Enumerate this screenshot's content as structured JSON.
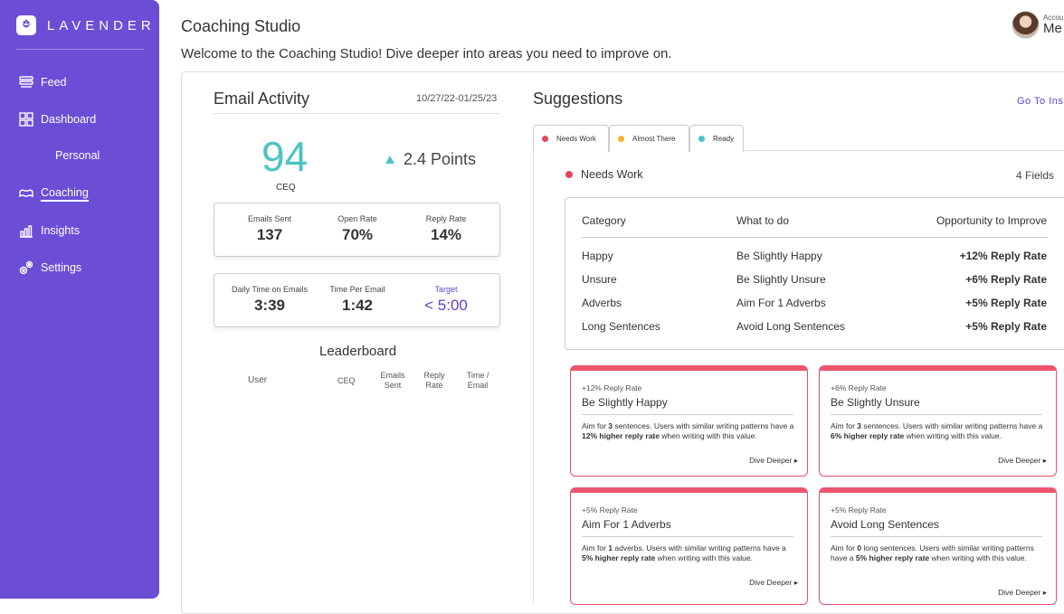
{
  "sidebar": {
    "brand": "LAVENDER",
    "items": [
      {
        "label": "Feed"
      },
      {
        "label": "Dashboard"
      },
      {
        "label": "Personal"
      },
      {
        "label": "Coaching"
      },
      {
        "label": "Insights"
      },
      {
        "label": "Settings"
      }
    ]
  },
  "header": {
    "title": "Coaching Studio",
    "subtitle": "Welcome to the Coaching Studio! Dive deeper into areas you need to improve on.",
    "account_label": "Accou",
    "account_name": "Me"
  },
  "email_activity": {
    "title": "Email Activity",
    "date_range": "10/27/22-01/25/23",
    "ceq": "94",
    "ceq_label": "CEQ",
    "points": "2.4 Points",
    "stats_row1": [
      {
        "label": "Emails Sent",
        "value": "137"
      },
      {
        "label": "Open Rate",
        "value": "70%"
      },
      {
        "label": "Reply Rate",
        "value": "14%"
      }
    ],
    "stats_row2": [
      {
        "label": "Daily Time on Emails",
        "value": "3:39"
      },
      {
        "label": "Time Per Email",
        "value": "1:42"
      },
      {
        "label": "Target",
        "value": "< 5:00"
      }
    ]
  },
  "leaderboard": {
    "title": "Leaderboard",
    "columns": [
      "User",
      "CEQ",
      "Emails\nSent",
      "Reply\nRate",
      "Time /\nEmail"
    ]
  },
  "suggestions": {
    "title": "Suggestions",
    "link": "Go To Insi",
    "tabs": [
      {
        "label": "Needs Work",
        "color": "#e0475f"
      },
      {
        "label": "Almost There",
        "color": "#f2b431"
      },
      {
        "label": "Ready",
        "color": "#4cc3c3"
      }
    ],
    "section_title": "Needs Work",
    "section_count": "4 Fields",
    "table_headers": [
      "Category",
      "What to do",
      "Opportunity to Improve"
    ],
    "table_rows": [
      [
        "Happy",
        "Be Slightly Happy",
        "+12% Reply Rate"
      ],
      [
        "Unsure",
        "Be Slightly Unsure",
        "+6% Reply Rate"
      ],
      [
        "Adverbs",
        "Aim For 1 Adverbs",
        "+5% Reply Rate"
      ],
      [
        "Long Sentences",
        "Avoid Long Sentences",
        "+5% Reply Rate"
      ]
    ],
    "cards": [
      {
        "tag": "+12% Reply Rate",
        "title": "Be Slightly Happy",
        "b1": "Aim for ",
        "b2": "3",
        "b3": " sentences. Users with similar writing patterns have a ",
        "b4": "12% higher reply rate",
        "b5": " when writing with this value.",
        "link": "Dive Deeper ▸"
      },
      {
        "tag": "+6% Reply Rate",
        "title": "Be Slightly Unsure",
        "b1": "Aim for ",
        "b2": "3",
        "b3": " sentences. Users with similar writing patterns have a ",
        "b4": "6% higher reply rate",
        "b5": " when writing with this value.",
        "link": "Dive Deeper ▸"
      },
      {
        "tag": "+5% Reply Rate",
        "title": "Aim For 1 Adverbs",
        "b1": "Aim for ",
        "b2": "1",
        "b3": " adverbs. Users with similar writing patterns have a ",
        "b4": "5% higher reply rate",
        "b5": " when writing with this value.",
        "link": "Dive Deeper ▸"
      },
      {
        "tag": "+5% Reply Rate",
        "title": "Avoid Long Sentences",
        "b1": "Aim for ",
        "b2": "0",
        "b3": " long sentences. Users with similar writing patterns have a ",
        "b4": "5% higher reply rate",
        "b5": " when writing with this value.",
        "link": "Dive Deeper ▸"
      }
    ]
  }
}
